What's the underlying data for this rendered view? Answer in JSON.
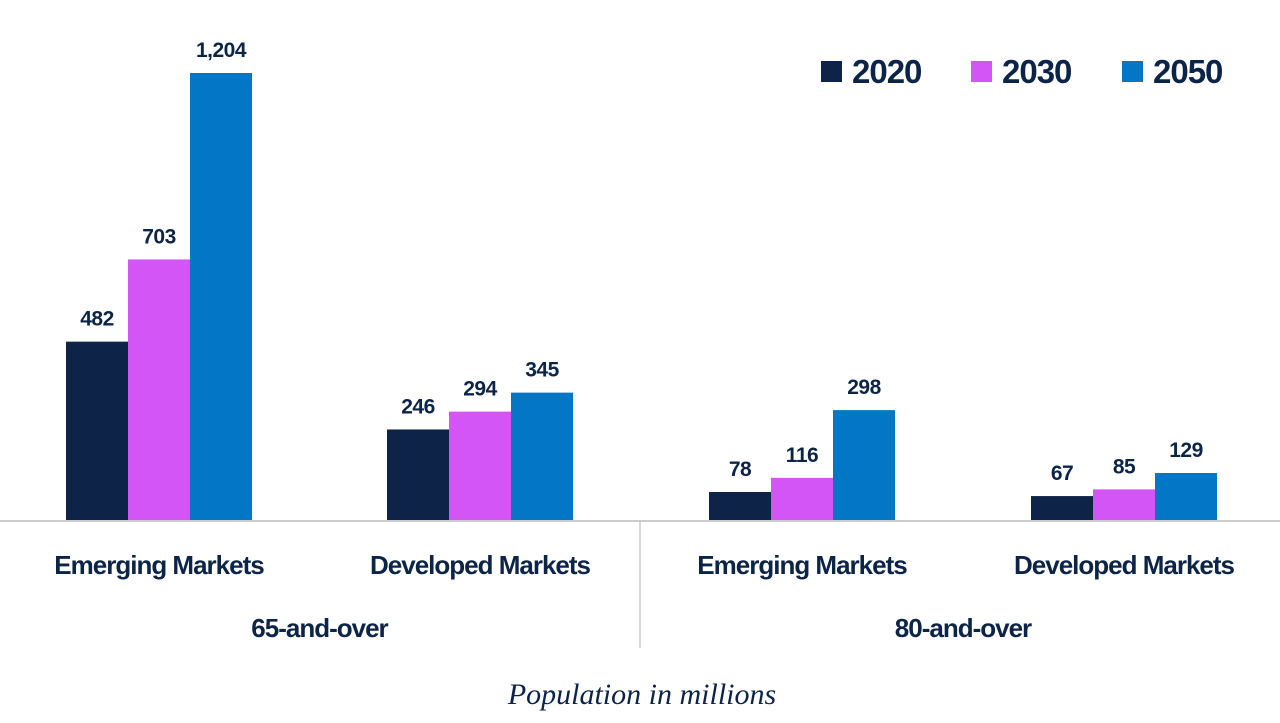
{
  "chart_data": {
    "type": "bar",
    "caption": "Population in millions",
    "groups": [
      {
        "label": "65-and-over",
        "categories": [
          "Emerging Markets",
          "Developed Markets"
        ]
      },
      {
        "label": "80-and-over",
        "categories": [
          "Emerging Markets",
          "Developed Markets"
        ]
      }
    ],
    "categories": [
      "Emerging Markets",
      "Developed Markets",
      "Emerging Markets",
      "Developed Markets"
    ],
    "series": [
      {
        "name": "2020",
        "color": "#0d2347",
        "values": [
          482,
          246,
          78,
          67
        ],
        "labels": [
          "482",
          "246",
          "78",
          "67"
        ]
      },
      {
        "name": "2030",
        "color": "#d455f5",
        "values": [
          703,
          294,
          116,
          85
        ],
        "labels": [
          "703",
          "294",
          "116",
          "85"
        ]
      },
      {
        "name": "2050",
        "color": "#0377c5",
        "values": [
          1204,
          345,
          298,
          129
        ],
        "labels": [
          "1,204",
          "345",
          "298",
          "129"
        ]
      }
    ],
    "ylim": [
      0,
      1204
    ],
    "grid": false,
    "legend_position": "top-right"
  }
}
